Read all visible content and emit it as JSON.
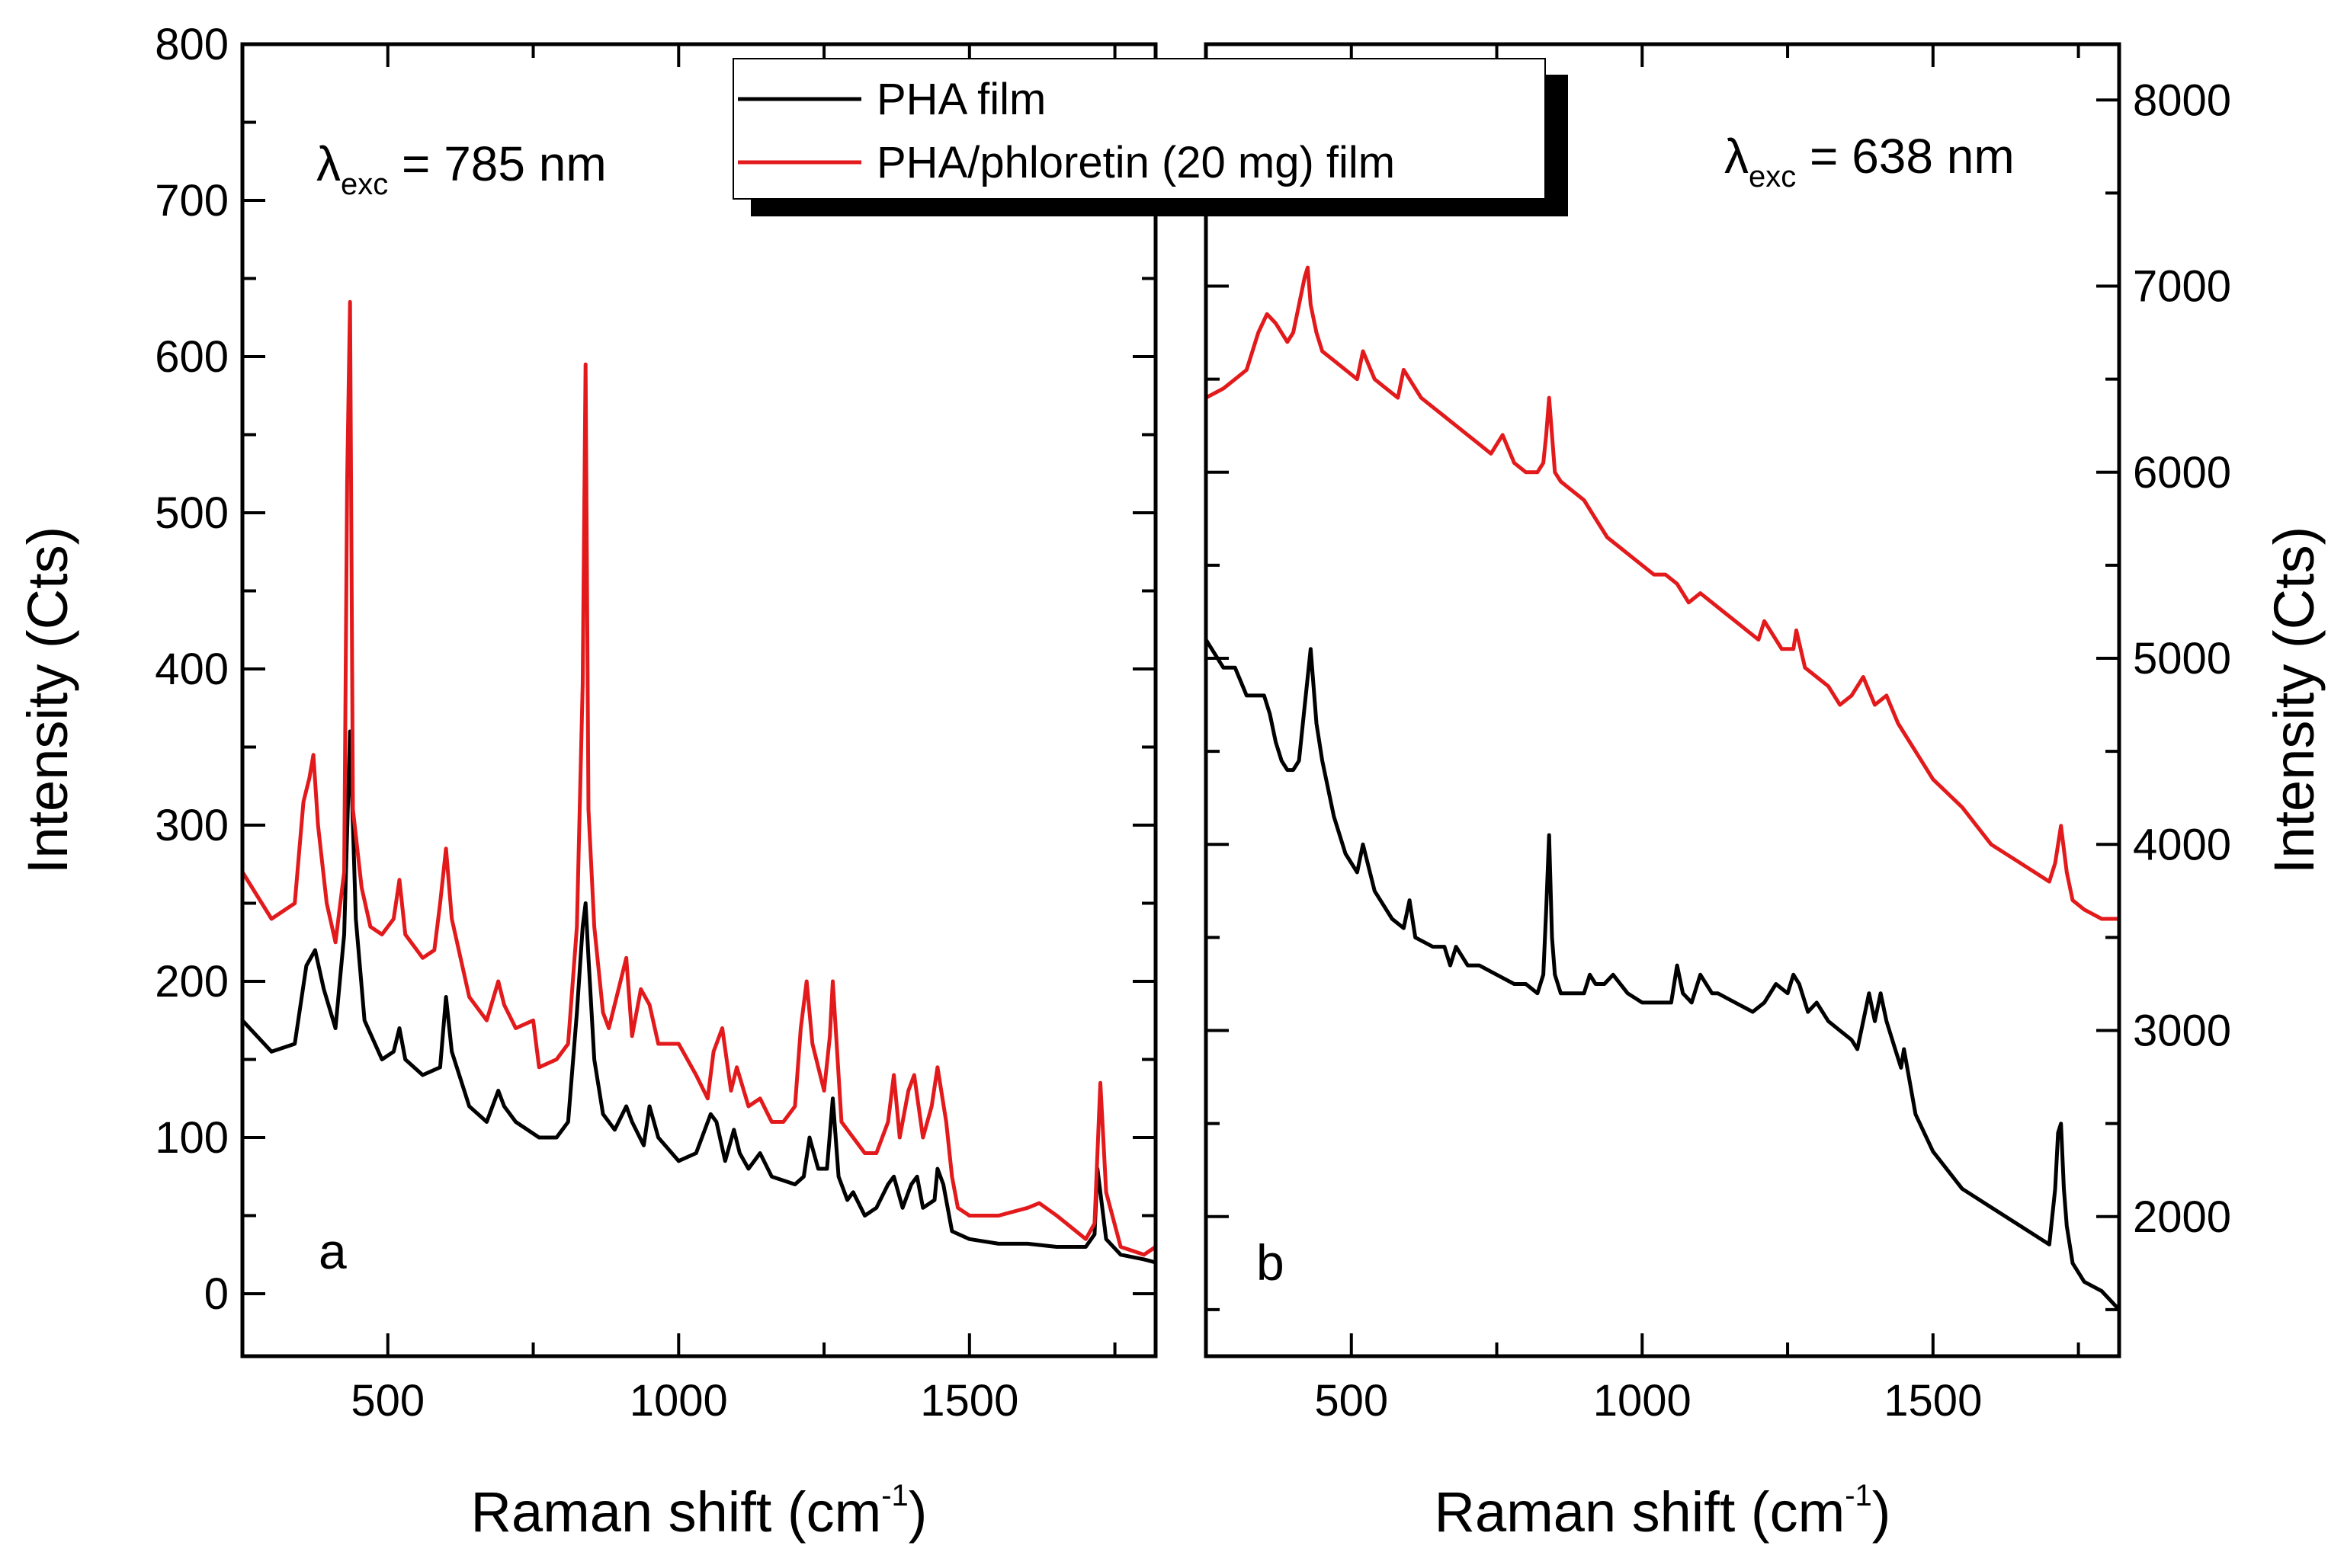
{
  "chart_data": [
    {
      "type": "line",
      "panel_label": "a",
      "annotation": {
        "symbol": "λ",
        "subscript": "exc",
        "text": " = 785 nm"
      },
      "xlabel": "Raman shift (cm",
      "xlabel_sup": "-1",
      "xlabel_close": ")",
      "ylabel": "Intensity (Cts)",
      "xlim": [
        250,
        1820
      ],
      "ylim": [
        -40,
        800
      ],
      "xticks": [
        500,
        1000,
        1500
      ],
      "yticks": [
        0,
        100,
        200,
        300,
        400,
        500,
        600,
        700,
        800
      ],
      "y_axis_side": "left",
      "series": [
        {
          "name": "PHA film",
          "color": "#000000",
          "x": [
            250,
            300,
            340,
            360,
            375,
            390,
            410,
            425,
            435,
            445,
            460,
            490,
            510,
            520,
            530,
            560,
            590,
            600,
            610,
            640,
            670,
            690,
            700,
            720,
            760,
            790,
            810,
            825,
            835,
            840,
            845,
            855,
            870,
            890,
            910,
            920,
            940,
            950,
            965,
            1000,
            1030,
            1055,
            1065,
            1080,
            1095,
            1105,
            1120,
            1140,
            1160,
            1200,
            1215,
            1225,
            1240,
            1255,
            1265,
            1275,
            1290,
            1300,
            1320,
            1340,
            1360,
            1370,
            1385,
            1400,
            1410,
            1420,
            1440,
            1445,
            1455,
            1470,
            1500,
            1550,
            1600,
            1650,
            1700,
            1715,
            1720,
            1725,
            1735,
            1760,
            1800,
            1820
          ],
          "y": [
            175,
            155,
            160,
            210,
            220,
            195,
            170,
            230,
            360,
            240,
            175,
            150,
            155,
            170,
            150,
            140,
            145,
            190,
            155,
            120,
            110,
            130,
            120,
            110,
            100,
            100,
            110,
            180,
            235,
            250,
            215,
            150,
            115,
            105,
            120,
            110,
            95,
            120,
            100,
            85,
            90,
            115,
            110,
            85,
            105,
            90,
            80,
            90,
            75,
            70,
            75,
            100,
            80,
            80,
            125,
            75,
            60,
            65,
            50,
            55,
            70,
            75,
            55,
            70,
            75,
            55,
            60,
            80,
            70,
            40,
            35,
            32,
            32,
            30,
            30,
            38,
            80,
            65,
            35,
            25,
            22,
            20
          ]
        },
        {
          "name": "PHA/phloretin (20 mg) film",
          "color": "#e31a1c",
          "x": [
            250,
            300,
            340,
            355,
            365,
            372,
            380,
            395,
            410,
            425,
            430,
            435,
            440,
            455,
            470,
            490,
            510,
            520,
            530,
            560,
            580,
            590,
            600,
            610,
            640,
            670,
            690,
            700,
            720,
            750,
            760,
            790,
            810,
            825,
            835,
            840,
            845,
            855,
            870,
            880,
            900,
            910,
            920,
            935,
            950,
            965,
            1000,
            1030,
            1050,
            1060,
            1075,
            1090,
            1100,
            1120,
            1140,
            1160,
            1180,
            1200,
            1210,
            1220,
            1230,
            1250,
            1260,
            1265,
            1280,
            1300,
            1320,
            1340,
            1360,
            1370,
            1380,
            1395,
            1405,
            1420,
            1435,
            1445,
            1460,
            1470,
            1480,
            1500,
            1550,
            1600,
            1620,
            1650,
            1700,
            1715,
            1720,
            1725,
            1735,
            1760,
            1800,
            1820
          ],
          "y": [
            270,
            240,
            250,
            315,
            330,
            345,
            300,
            250,
            225,
            270,
            520,
            635,
            310,
            260,
            235,
            230,
            240,
            265,
            230,
            215,
            220,
            250,
            285,
            240,
            190,
            175,
            200,
            185,
            170,
            175,
            145,
            150,
            160,
            235,
            390,
            595,
            310,
            235,
            180,
            170,
            200,
            215,
            165,
            195,
            185,
            160,
            160,
            140,
            125,
            155,
            170,
            130,
            145,
            120,
            125,
            110,
            110,
            120,
            170,
            200,
            160,
            130,
            165,
            200,
            110,
            100,
            90,
            90,
            110,
            140,
            100,
            130,
            140,
            100,
            120,
            145,
            110,
            75,
            55,
            50,
            50,
            55,
            58,
            50,
            35,
            45,
            90,
            135,
            65,
            30,
            25,
            30
          ]
        }
      ]
    },
    {
      "type": "line",
      "panel_label": "b",
      "annotation": {
        "symbol": "λ",
        "subscript": "exc",
        "text": " = 638 nm"
      },
      "xlabel": "Raman shift (cm",
      "xlabel_sup": "-1",
      "xlabel_close": ")",
      "ylabel": "Intensity (Cts)",
      "xlim": [
        250,
        1820
      ],
      "ylim": [
        1250,
        8300
      ],
      "xticks": [
        500,
        1000,
        1500
      ],
      "yticks": [
        2000,
        3000,
        4000,
        5000,
        6000,
        7000,
        8000
      ],
      "y_axis_side": "right",
      "series": [
        {
          "name": "PHA film",
          "color": "#000000",
          "x": [
            250,
            280,
            300,
            320,
            350,
            360,
            370,
            380,
            390,
            400,
            410,
            420,
            430,
            440,
            450,
            470,
            490,
            510,
            520,
            540,
            570,
            590,
            600,
            610,
            640,
            660,
            670,
            680,
            700,
            720,
            750,
            780,
            800,
            820,
            830,
            835,
            840,
            845,
            850,
            860,
            880,
            900,
            910,
            920,
            935,
            950,
            975,
            1000,
            1030,
            1050,
            1060,
            1070,
            1085,
            1100,
            1120,
            1130,
            1160,
            1190,
            1210,
            1230,
            1250,
            1260,
            1270,
            1285,
            1300,
            1320,
            1340,
            1360,
            1370,
            1380,
            1390,
            1400,
            1410,
            1420,
            1435,
            1445,
            1450,
            1470,
            1500,
            1550,
            1600,
            1650,
            1700,
            1710,
            1715,
            1720,
            1725,
            1730,
            1740,
            1760,
            1790,
            1820
          ],
          "y": [
            5100,
            4950,
            4950,
            4800,
            4800,
            4700,
            4550,
            4450,
            4400,
            4400,
            4450,
            4750,
            5050,
            4650,
            4450,
            4150,
            3950,
            3850,
            4000,
            3750,
            3600,
            3550,
            3700,
            3500,
            3450,
            3450,
            3350,
            3450,
            3350,
            3350,
            3300,
            3250,
            3250,
            3200,
            3300,
            3650,
            4050,
            3500,
            3300,
            3200,
            3200,
            3200,
            3300,
            3250,
            3250,
            3300,
            3200,
            3150,
            3150,
            3150,
            3350,
            3200,
            3150,
            3300,
            3200,
            3200,
            3150,
            3100,
            3150,
            3250,
            3200,
            3300,
            3250,
            3100,
            3150,
            3050,
            3000,
            2950,
            2900,
            3050,
            3200,
            3050,
            3200,
            3050,
            2900,
            2800,
            2900,
            2550,
            2350,
            2150,
            2050,
            1950,
            1850,
            2150,
            2450,
            2500,
            2150,
            1950,
            1750,
            1650,
            1600,
            1500
          ]
        },
        {
          "name": "PHA/phloretin (20 mg) film",
          "color": "#e31a1c",
          "x": [
            250,
            280,
            300,
            320,
            340,
            355,
            370,
            390,
            400,
            410,
            420,
            425,
            430,
            440,
            450,
            470,
            490,
            510,
            520,
            540,
            560,
            580,
            590,
            600,
            620,
            640,
            660,
            680,
            700,
            720,
            740,
            760,
            780,
            800,
            820,
            830,
            835,
            840,
            845,
            850,
            860,
            880,
            900,
            920,
            940,
            960,
            980,
            1000,
            1020,
            1040,
            1060,
            1080,
            1100,
            1120,
            1140,
            1160,
            1180,
            1200,
            1210,
            1220,
            1240,
            1260,
            1265,
            1280,
            1300,
            1320,
            1340,
            1360,
            1380,
            1400,
            1420,
            1440,
            1460,
            1480,
            1500,
            1550,
            1600,
            1650,
            1700,
            1710,
            1720,
            1730,
            1740,
            1760,
            1790,
            1820
          ],
          "y": [
            6400,
            6450,
            6500,
            6550,
            6750,
            6850,
            6800,
            6700,
            6750,
            6900,
            7050,
            7100,
            6900,
            6750,
            6650,
            6600,
            6550,
            6500,
            6650,
            6500,
            6450,
            6400,
            6550,
            6500,
            6400,
            6350,
            6300,
            6250,
            6200,
            6150,
            6100,
            6200,
            6050,
            6000,
            6000,
            6050,
            6200,
            6400,
            6200,
            6000,
            5950,
            5900,
            5850,
            5750,
            5650,
            5600,
            5550,
            5500,
            5450,
            5450,
            5400,
            5300,
            5350,
            5300,
            5250,
            5200,
            5150,
            5100,
            5200,
            5150,
            5050,
            5050,
            5150,
            4950,
            4900,
            4850,
            4750,
            4800,
            4900,
            4750,
            4800,
            4650,
            4550,
            4450,
            4350,
            4200,
            4000,
            3900,
            3800,
            3900,
            4100,
            3850,
            3700,
            3650,
            3600,
            3600
          ]
        }
      ]
    }
  ],
  "legend": {
    "placement": "top-center",
    "entries": [
      {
        "label": "PHA film",
        "color": "#000000"
      },
      {
        "label": "PHA/phloretin (20 mg) film",
        "color": "#e31a1c"
      }
    ]
  }
}
